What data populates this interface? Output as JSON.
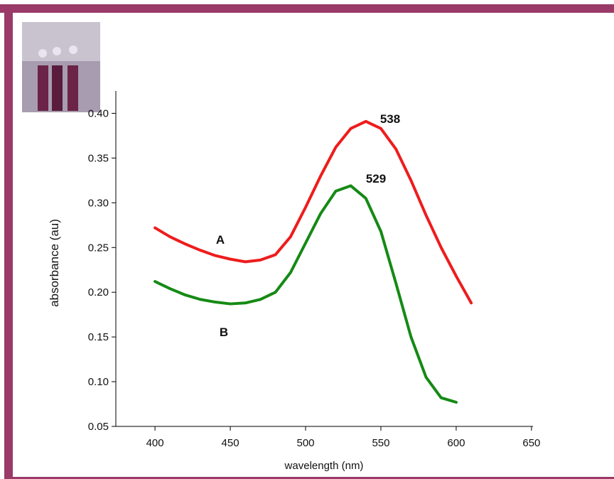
{
  "chart_data": {
    "type": "line",
    "x_label": "wavelength (nm)",
    "y_label": "absorbance (au)",
    "x": [
      400,
      410,
      420,
      430,
      440,
      450,
      460,
      470,
      480,
      490,
      500,
      510,
      520,
      530,
      540,
      550,
      560,
      570,
      580,
      590,
      600,
      610
    ],
    "series": [
      {
        "name": "A",
        "color": "#ee1c1c",
        "values": [
          0.272,
          0.262,
          0.254,
          0.247,
          0.241,
          0.237,
          0.234,
          0.236,
          0.242,
          0.262,
          0.295,
          0.33,
          0.362,
          0.383,
          0.391,
          0.383,
          0.36,
          0.325,
          0.286,
          0.25,
          0.218,
          0.188
        ]
      },
      {
        "name": "B",
        "color": "#158a15",
        "values": [
          0.212,
          0.204,
          0.197,
          0.192,
          0.189,
          0.187,
          0.188,
          0.192,
          0.2,
          0.222,
          0.255,
          0.288,
          0.313,
          0.319,
          0.305,
          0.268,
          0.21,
          0.15,
          0.105,
          0.082,
          0.077,
          null
        ]
      }
    ],
    "annotations": [
      {
        "text": "538",
        "series": 0
      },
      {
        "text": "529",
        "series": 1
      }
    ],
    "xlim": [
      374,
      651
    ],
    "ylim": [
      0.05,
      0.425
    ],
    "xticks": [
      400,
      450,
      500,
      550,
      600,
      650
    ],
    "yticks": [
      0.05,
      {
        "value": 0.1,
        "label": "0.10"
      },
      0.15,
      {
        "value": 0.2,
        "label": "0.20"
      },
      0.25,
      {
        "value": 0.3,
        "label": "0.30"
      },
      0.35,
      {
        "value": 0.4,
        "label": "0.40"
      }
    ]
  }
}
